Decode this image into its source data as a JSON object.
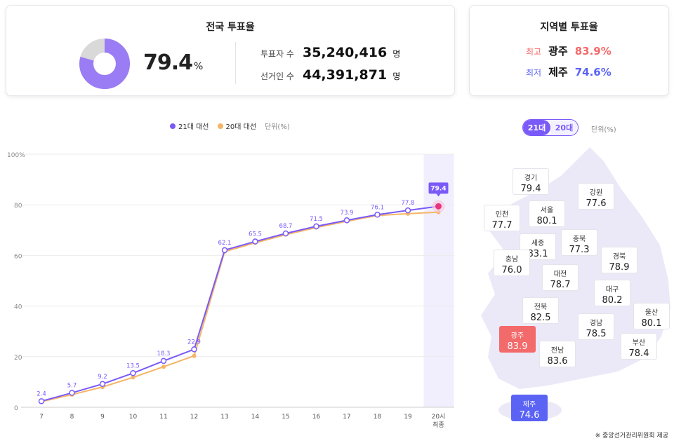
{
  "national": {
    "title": "전국 투표율",
    "rate": "79.4",
    "rate_unit": "%",
    "rate_value": 79.4,
    "voters_label": "투표자 수",
    "voters": "35,240,416",
    "electorate_label": "선거인 수",
    "electorate": "44,391,871",
    "count_unit": "명"
  },
  "regional_summary": {
    "title": "지역별 투표율",
    "high_label": "최고",
    "high_region": "광주",
    "high_value": "83.9%",
    "low_label": "최저",
    "low_region": "제주",
    "low_value": "74.6%"
  },
  "colors": {
    "s21": "#7a5af8",
    "s20": "#f5b567",
    "high": "#f36a6a",
    "low": "#5b63f5",
    "final_point": "#e8347f"
  },
  "chart_data": {
    "type": "line",
    "legend": [
      "21대 대선",
      "20대 대선"
    ],
    "unit_label": "단위(%)",
    "categories": [
      "7",
      "8",
      "9",
      "10",
      "11",
      "12",
      "13",
      "14",
      "15",
      "16",
      "17",
      "18",
      "19",
      "20시\n최종"
    ],
    "series": [
      {
        "name": "21대 대선",
        "values": [
          2.4,
          5.7,
          9.2,
          13.5,
          18.3,
          22.9,
          62.1,
          65.5,
          68.7,
          71.5,
          73.9,
          76.1,
          77.8,
          79.4
        ],
        "labels": [
          "2.4",
          "5.7",
          "9.2",
          "13.5",
          "18.3",
          "22.9",
          "62.1",
          "65.5",
          "68.7",
          "71.5",
          "73.9",
          "76.1",
          "77.8",
          "79.4"
        ]
      },
      {
        "name": "20대 대선",
        "values": [
          2.2,
          5.0,
          8.0,
          11.8,
          16.0,
          20.3,
          61.5,
          65.0,
          68.2,
          71.0,
          73.5,
          75.8,
          76.5,
          77.1
        ]
      }
    ],
    "ylim": [
      0,
      100
    ],
    "yticks": [
      "0",
      "20",
      "40",
      "60",
      "80",
      "100%"
    ],
    "grid": true,
    "legend_position": "top"
  },
  "map": {
    "toggle": [
      "21대",
      "20대"
    ],
    "unit_label": "단위(%)",
    "regions": [
      {
        "name": "경기",
        "value": "79.4"
      },
      {
        "name": "강원",
        "value": "77.6"
      },
      {
        "name": "인천",
        "value": "77.7"
      },
      {
        "name": "서울",
        "value": "80.1"
      },
      {
        "name": "세종",
        "value": "83.1"
      },
      {
        "name": "충북",
        "value": "77.3"
      },
      {
        "name": "경북",
        "value": "78.9"
      },
      {
        "name": "충남",
        "value": "76.0"
      },
      {
        "name": "대전",
        "value": "78.7"
      },
      {
        "name": "대구",
        "value": "80.2"
      },
      {
        "name": "울산",
        "value": "80.1"
      },
      {
        "name": "전북",
        "value": "82.5"
      },
      {
        "name": "경남",
        "value": "78.5"
      },
      {
        "name": "광주",
        "value": "83.9"
      },
      {
        "name": "부산",
        "value": "78.4"
      },
      {
        "name": "전남",
        "value": "83.6"
      },
      {
        "name": "제주",
        "value": "74.6"
      }
    ],
    "source": "※ 중앙선거관리위원회 제공"
  }
}
